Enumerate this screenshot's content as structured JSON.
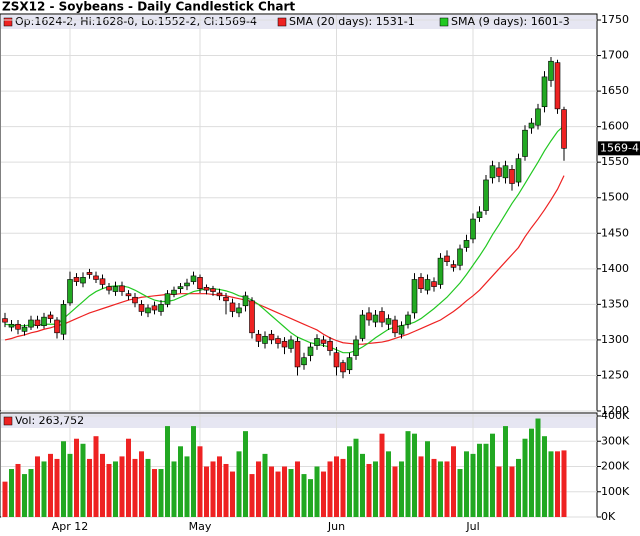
{
  "chart_data": [
    {
      "type": "candlestick",
      "title": "ZSX12 - Soybeans - Daily Candlestick Chart",
      "ohlc_label": "Op:1624-2, Hi:1628-0, Lo:1552-2, Cl:1569-4",
      "last_label": "1569-4",
      "up_color": "#22a822",
      "down_color": "#ee2222",
      "categories": [
        null,
        null,
        null,
        null,
        null,
        null,
        null,
        null,
        null,
        null,
        "Apr 12",
        null,
        null,
        null,
        null,
        null,
        null,
        null,
        null,
        null,
        null,
        null,
        null,
        null,
        null,
        null,
        null,
        null,
        null,
        null,
        "May",
        null,
        null,
        null,
        null,
        null,
        null,
        null,
        null,
        null,
        null,
        null,
        null,
        null,
        null,
        null,
        null,
        null,
        null,
        null,
        null,
        "Jun",
        null,
        null,
        null,
        null,
        null,
        null,
        null,
        null,
        null,
        null,
        null,
        null,
        null,
        null,
        null,
        null,
        null,
        null,
        null,
        null,
        "Jul",
        null,
        null,
        null,
        null,
        null,
        null,
        null,
        null,
        null,
        null,
        null,
        null,
        null,
        null
      ],
      "open": [
        1330,
        1318,
        1322,
        1312,
        1318,
        1328,
        1320,
        1335,
        1328,
        1308,
        1352,
        1388,
        1380,
        1395,
        1390,
        1386,
        1375,
        1368,
        1376,
        1365,
        1360,
        1350,
        1338,
        1348,
        1340,
        1350,
        1364,
        1372,
        1376,
        1382,
        1388,
        1374,
        1372,
        1366,
        1360,
        1352,
        1338,
        1348,
        1355,
        1308,
        1295,
        1308,
        1302,
        1298,
        1288,
        1298,
        1265,
        1278,
        1292,
        1300,
        1298,
        1282,
        1268,
        1258,
        1278,
        1302,
        1338,
        1325,
        1340,
        1322,
        1328,
        1308,
        1322,
        1338,
        1388,
        1370,
        1382,
        1378,
        1418,
        1406,
        1405,
        1430,
        1442,
        1472,
        1482,
        1528,
        1542,
        1528,
        1540,
        1522,
        1558,
        1598,
        1602,
        1628,
        1665,
        1690,
        1624
      ],
      "high": [
        1338,
        1328,
        1328,
        1322,
        1334,
        1334,
        1338,
        1340,
        1332,
        1356,
        1396,
        1394,
        1395,
        1400,
        1396,
        1392,
        1380,
        1382,
        1382,
        1370,
        1366,
        1356,
        1350,
        1354,
        1356,
        1370,
        1375,
        1380,
        1386,
        1396,
        1392,
        1378,
        1376,
        1372,
        1366,
        1358,
        1352,
        1368,
        1360,
        1314,
        1312,
        1314,
        1306,
        1304,
        1306,
        1304,
        1282,
        1296,
        1308,
        1306,
        1304,
        1290,
        1272,
        1282,
        1306,
        1342,
        1346,
        1342,
        1346,
        1336,
        1334,
        1326,
        1340,
        1394,
        1394,
        1392,
        1388,
        1422,
        1426,
        1412,
        1434,
        1448,
        1478,
        1488,
        1532,
        1552,
        1550,
        1552,
        1546,
        1562,
        1602,
        1612,
        1632,
        1678,
        1698,
        1694,
        1628
      ],
      "low": [
        1318,
        1312,
        1308,
        1306,
        1314,
        1316,
        1316,
        1324,
        1302,
        1300,
        1348,
        1376,
        1374,
        1386,
        1380,
        1372,
        1364,
        1362,
        1362,
        1356,
        1346,
        1334,
        1332,
        1336,
        1334,
        1346,
        1360,
        1366,
        1370,
        1378,
        1366,
        1364,
        1362,
        1356,
        1336,
        1332,
        1332,
        1340,
        1302,
        1290,
        1288,
        1294,
        1288,
        1280,
        1282,
        1250,
        1258,
        1270,
        1286,
        1290,
        1278,
        1250,
        1246,
        1252,
        1272,
        1298,
        1320,
        1318,
        1318,
        1314,
        1304,
        1302,
        1316,
        1330,
        1366,
        1364,
        1368,
        1372,
        1404,
        1396,
        1398,
        1424,
        1436,
        1466,
        1476,
        1520,
        1522,
        1520,
        1510,
        1516,
        1552,
        1590,
        1596,
        1620,
        1656,
        1618,
        1552
      ],
      "close": [
        1325,
        1322,
        1315,
        1318,
        1328,
        1320,
        1332,
        1330,
        1310,
        1350,
        1385,
        1382,
        1388,
        1392,
        1385,
        1378,
        1370,
        1375,
        1368,
        1362,
        1352,
        1340,
        1345,
        1342,
        1350,
        1365,
        1370,
        1375,
        1380,
        1390,
        1372,
        1370,
        1368,
        1362,
        1355,
        1340,
        1345,
        1362,
        1310,
        1298,
        1305,
        1300,
        1295,
        1290,
        1300,
        1262,
        1275,
        1290,
        1302,
        1295,
        1285,
        1262,
        1255,
        1275,
        1300,
        1335,
        1328,
        1335,
        1325,
        1330,
        1310,
        1320,
        1335,
        1385,
        1372,
        1385,
        1375,
        1415,
        1410,
        1402,
        1428,
        1440,
        1470,
        1480,
        1525,
        1545,
        1530,
        1545,
        1520,
        1555,
        1595,
        1605,
        1625,
        1670,
        1692,
        1625,
        1569.5
      ],
      "series": [
        {
          "name": "SMA (20 days): 1531-1",
          "color": "#ee2222",
          "values": [
            1300,
            1302,
            1305,
            1307,
            1310,
            1312,
            1315,
            1317,
            1320,
            1322,
            1326,
            1330,
            1334,
            1338,
            1341,
            1344,
            1347,
            1350,
            1353,
            1356,
            1358,
            1360,
            1361,
            1362,
            1363,
            1364,
            1364,
            1365,
            1365,
            1365,
            1365,
            1365,
            1364,
            1363,
            1362,
            1360,
            1358,
            1356,
            1354,
            1350,
            1346,
            1342,
            1338,
            1334,
            1330,
            1326,
            1322,
            1318,
            1314,
            1308,
            1303,
            1299,
            1296,
            1295,
            1294,
            1294,
            1295,
            1296,
            1297,
            1299,
            1302,
            1305,
            1308,
            1312,
            1316,
            1320,
            1324,
            1328,
            1334,
            1340,
            1347,
            1355,
            1362,
            1370,
            1380,
            1390,
            1400,
            1410,
            1420,
            1430,
            1445,
            1458,
            1470,
            1483,
            1497,
            1512,
            1531.125
          ]
        },
        {
          "name": "SMA (9 days): 1601-3",
          "color": "#22c822",
          "values": [
            1322,
            1321,
            1320,
            1320,
            1321,
            1321,
            1322,
            1322,
            1322,
            1330,
            1338,
            1346,
            1354,
            1362,
            1368,
            1372,
            1375,
            1376,
            1376,
            1374,
            1370,
            1365,
            1360,
            1356,
            1354,
            1354,
            1356,
            1360,
            1364,
            1368,
            1370,
            1372,
            1372,
            1371,
            1369,
            1366,
            1362,
            1360,
            1356,
            1350,
            1342,
            1334,
            1326,
            1318,
            1310,
            1304,
            1300,
            1296,
            1294,
            1292,
            1290,
            1286,
            1282,
            1282,
            1285,
            1290,
            1296,
            1303,
            1309,
            1315,
            1318,
            1320,
            1322,
            1325,
            1330,
            1337,
            1344,
            1352,
            1360,
            1370,
            1380,
            1392,
            1405,
            1418,
            1432,
            1448,
            1462,
            1477,
            1492,
            1505,
            1520,
            1535,
            1550,
            1566,
            1580,
            1593,
            1601.375
          ]
        }
      ],
      "ylim": [
        1200,
        1750
      ],
      "yticks": [
        1200,
        1250,
        1300,
        1350,
        1400,
        1450,
        1500,
        1550,
        1600,
        1650,
        1700,
        1750
      ],
      "grid": true
    },
    {
      "type": "bar",
      "legend": "Vol: 263,752",
      "values": [
        140,
        190,
        210,
        170,
        190,
        240,
        220,
        250,
        230,
        300,
        250,
        310,
        290,
        230,
        320,
        250,
        210,
        220,
        240,
        310,
        230,
        260,
        230,
        190,
        190,
        360,
        220,
        280,
        240,
        360,
        280,
        200,
        220,
        240,
        210,
        180,
        260,
        340,
        170,
        220,
        250,
        200,
        180,
        200,
        190,
        220,
        170,
        150,
        200,
        180,
        220,
        240,
        230,
        280,
        310,
        250,
        210,
        220,
        330,
        260,
        200,
        220,
        340,
        330,
        240,
        300,
        230,
        220,
        220,
        280,
        190,
        260,
        250,
        290,
        290,
        330,
        200,
        360,
        200,
        230,
        310,
        350,
        390,
        320,
        260,
        260,
        263.752
      ],
      "ylim": [
        0,
        400
      ],
      "yticks": [
        {
          "value": 0,
          "label": "0K"
        },
        {
          "value": 100,
          "label": "100K"
        },
        {
          "value": 200,
          "label": "200K"
        },
        {
          "value": 300,
          "label": "300K"
        },
        {
          "value": 400,
          "label": "400K"
        }
      ],
      "grid": true
    }
  ]
}
